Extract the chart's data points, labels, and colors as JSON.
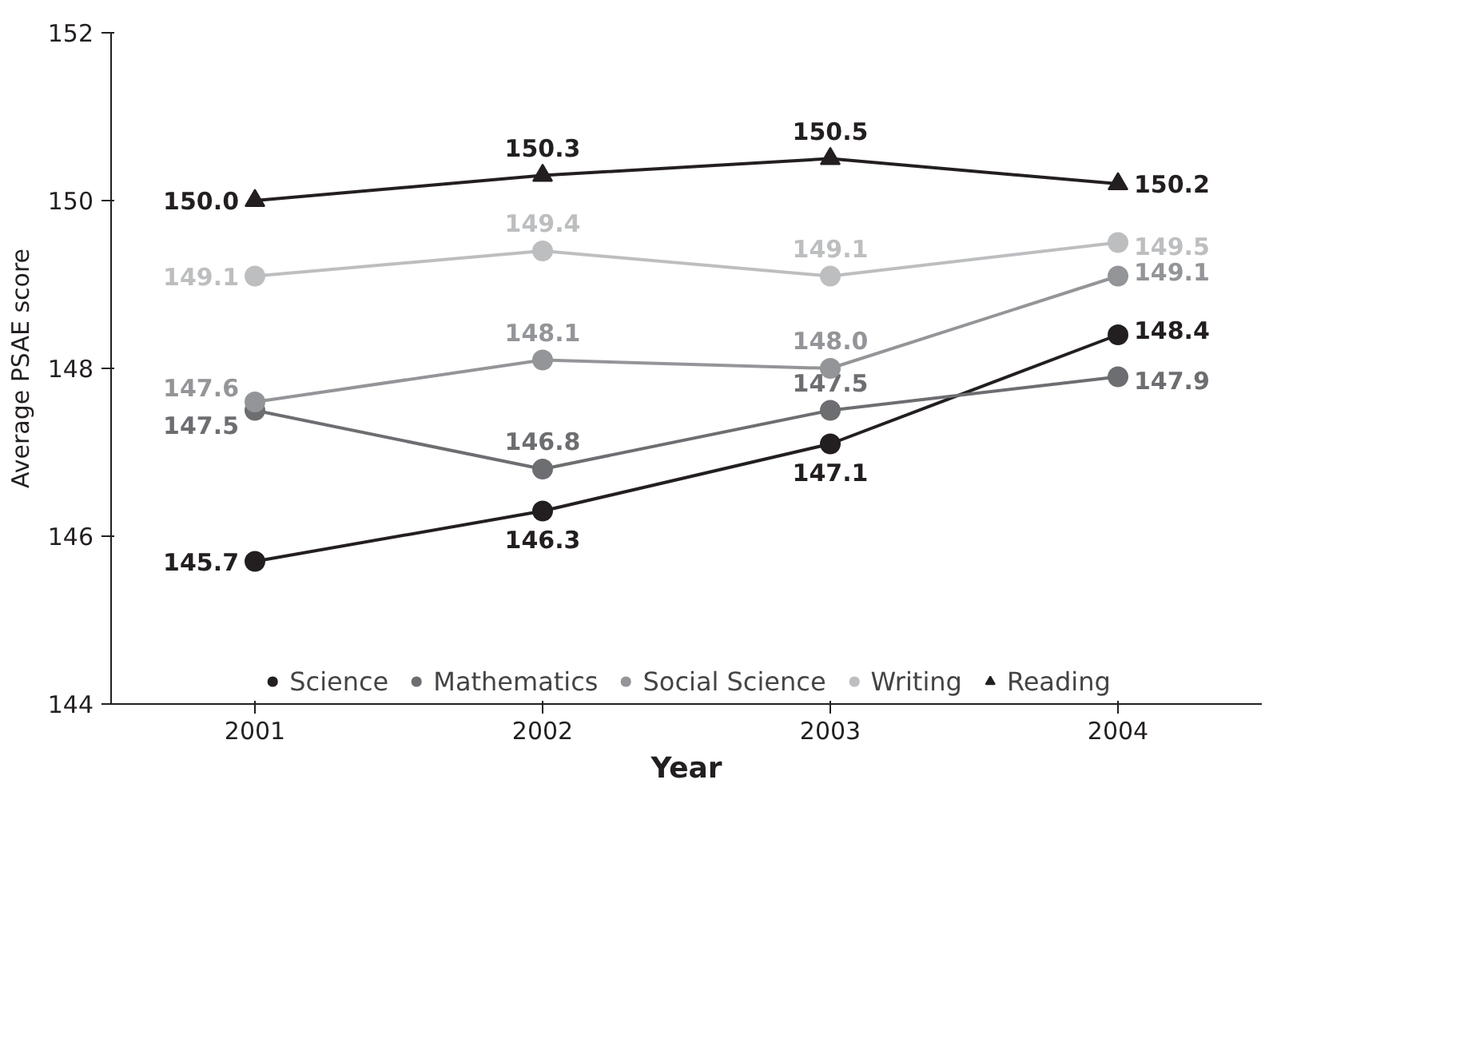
{
  "chart_data": {
    "type": "line",
    "xlabel": "Year",
    "ylabel": "Average PSAE score",
    "categories": [
      "2001",
      "2002",
      "2003",
      "2004"
    ],
    "ylim": [
      144,
      152
    ],
    "yticks": [
      144,
      146,
      148,
      150,
      152
    ],
    "grid": false,
    "legend": "bottom",
    "line_style": "solid",
    "series": [
      {
        "name": "Science",
        "color": "#231f20",
        "marker": "circle",
        "values": [
          145.7,
          146.3,
          147.1,
          148.4
        ],
        "value_labels": [
          "145.7",
          "146.3",
          "147.1",
          "148.4"
        ]
      },
      {
        "name": "Mathematics",
        "color": "#6d6e71",
        "marker": "circle",
        "values": [
          147.5,
          146.8,
          147.5,
          147.9
        ],
        "value_labels": [
          "147.5",
          "146.8",
          "147.5",
          "147.9"
        ]
      },
      {
        "name": "Social Science",
        "color": "#939598",
        "marker": "circle",
        "values": [
          147.6,
          148.1,
          148.0,
          149.1
        ],
        "value_labels": [
          "147.6",
          "148.1",
          "148.0",
          "149.1"
        ]
      },
      {
        "name": "Writing",
        "color": "#bcbec0",
        "marker": "circle",
        "values": [
          149.1,
          149.4,
          149.1,
          149.5
        ],
        "value_labels": [
          "149.1",
          "149.4",
          "149.1",
          "149.5"
        ]
      },
      {
        "name": "Reading",
        "color": "#231f20",
        "marker": "triangle",
        "values": [
          150.0,
          150.3,
          150.5,
          150.2
        ],
        "value_labels": [
          "150.0",
          "150.3",
          "150.5",
          "150.2"
        ]
      }
    ]
  }
}
